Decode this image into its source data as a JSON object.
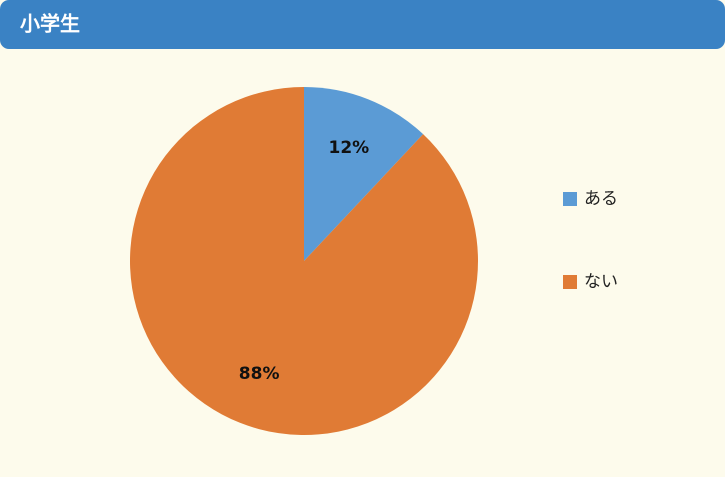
{
  "chart_data": {
    "type": "pie",
    "title": "小学生",
    "categories": [
      "ある",
      "ない"
    ],
    "values": [
      12,
      88
    ],
    "value_labels": [
      "12%",
      "88%"
    ],
    "colors": [
      "#5b9bd5",
      "#e07b35"
    ],
    "legend": "right"
  }
}
